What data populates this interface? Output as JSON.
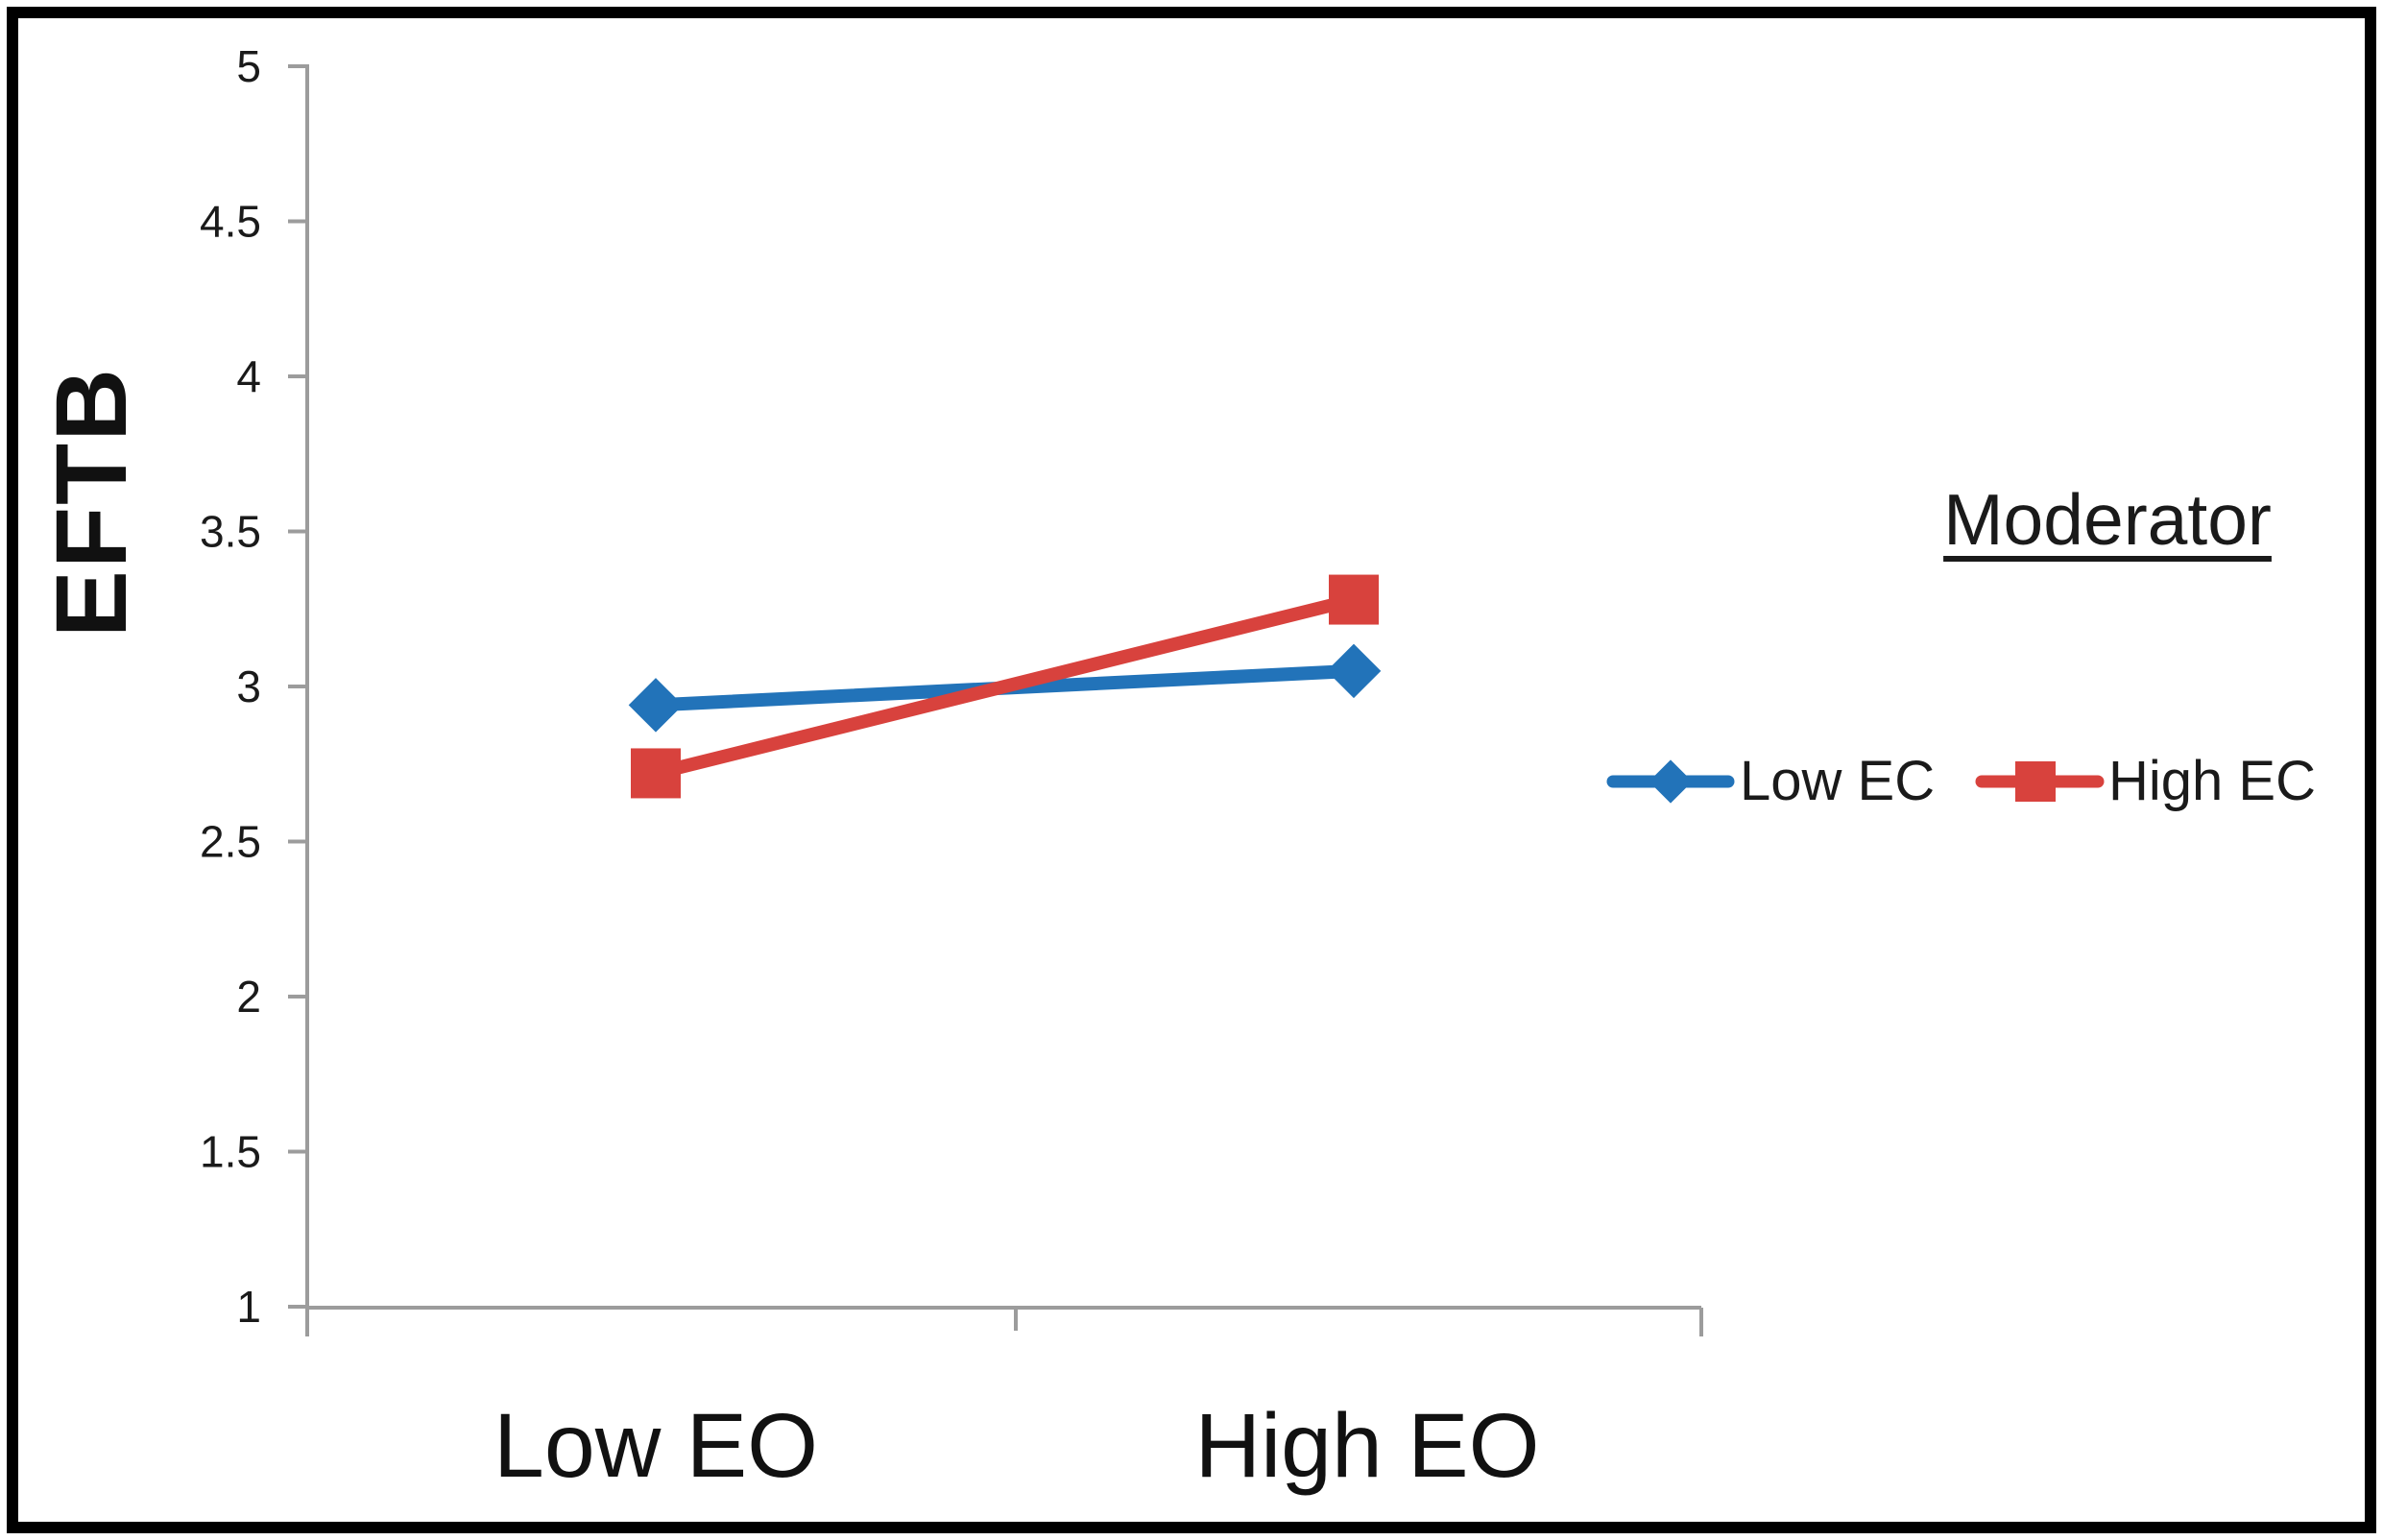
{
  "chart_data": {
    "type": "line",
    "categories": [
      "Low EO",
      "High EO"
    ],
    "series": [
      {
        "name": "Low EC",
        "values": [
          2.94,
          3.05
        ],
        "color": "#2273B9",
        "marker": "diamond"
      },
      {
        "name": "High EC",
        "values": [
          2.72,
          3.28
        ],
        "color": "#D8423D",
        "marker": "square"
      }
    ],
    "title": "",
    "xlabel": "",
    "ylabel": "EFTB",
    "ylim": [
      1,
      5
    ],
    "yticks": [
      1,
      1.5,
      2,
      2.5,
      3,
      3.5,
      4,
      4.5,
      5
    ],
    "ytick_labels": [
      "1",
      "1.5",
      "2",
      "2.5",
      "3",
      "3.5",
      "4",
      "4.5",
      "5"
    ],
    "grid": false,
    "legend_title": "Moderator",
    "legend_position": "right",
    "axis_color": "#9C9C9C",
    "text_color": "#1A1A1A",
    "frame_color": "#000000"
  }
}
